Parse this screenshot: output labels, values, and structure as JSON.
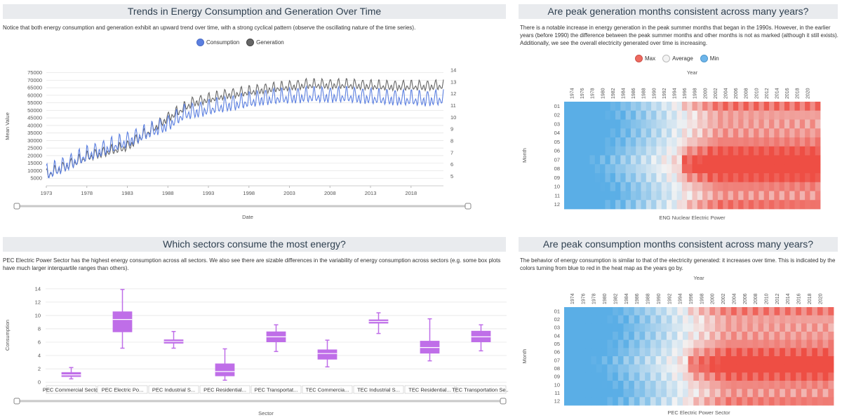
{
  "panels": {
    "trends": {
      "title": "Trends in Energy Consumption and Generation Over Time",
      "description": "Notice that both energy consumption and generation exhibit an upward trend over time, with a strong cyclical pattern (observe the oscillating nature of the time series).",
      "legend": [
        "Consumption",
        "Generation"
      ],
      "xlabel": "Date",
      "ylabel": "Mean Value"
    },
    "gen_heatmap": {
      "title": "Are peak generation months consistent across many years?",
      "description": "There is a notable increase in energy generation in the peak summer months that began in the 1990s. However, in the earlier years (before 1990) the difference between the peak summer months and other months is not as marked (although it still exists). Additionally, we see the overall electricity generated over time is increasing.",
      "legend": [
        "Max",
        "Average",
        "Min"
      ],
      "xlabel": "Year",
      "ylabel": "Month",
      "caption": "ENG Nuclear Electric Power"
    },
    "sectors": {
      "title": "Which sectors consume the most energy?",
      "description": "PEC Electric Power Sector has the highest energy consumption across all sectors. We also see there are sizable differences in the variability of energy consumption across sectors (e.g. some box plots have much larger interquartile ranges than others).",
      "xlabel": "Sector",
      "ylabel": "Consumption"
    },
    "cons_heatmap": {
      "title": "Are peak consumption months consistent across many years?",
      "description": "The behavior of energy consumption is similar to that of the electricity generated: it increases over time. This is indicated by the colors turning from blue to red in the heat map as the years go by.",
      "xlabel": "Year",
      "ylabel": "Month",
      "caption": "PEC Electric Power Sector"
    }
  },
  "colors": {
    "consumption": "#5b7fe0",
    "generation": "#666666",
    "box": "#bf6ee8",
    "heat_min": "#5aaee6",
    "heat_avg": "#f3f3f3",
    "heat_max": "#ee4e44",
    "title_bg": "#e9ebee"
  },
  "chart_data": [
    {
      "type": "line",
      "x_ticks": [
        "1973",
        "1978",
        "1983",
        "1988",
        "1993",
        "1998",
        "2003",
        "2008",
        "2013",
        "2018"
      ],
      "y_left_ticks": [
        5000,
        10000,
        15000,
        20000,
        25000,
        30000,
        35000,
        40000,
        45000,
        50000,
        55000,
        60000,
        65000,
        70000,
        75000
      ],
      "y_right_ticks": [
        5,
        6,
        7,
        8,
        9,
        10,
        11,
        12,
        13,
        14
      ],
      "x_range": [
        1973,
        2022
      ],
      "series": [
        {
          "name": "Consumption",
          "axis": "right",
          "trend": [
            [
              1973,
              5.2
            ],
            [
              1978,
              6.8
            ],
            [
              1983,
              8.0
            ],
            [
              1988,
              9.4
            ],
            [
              1990,
              10.3
            ],
            [
              1995,
              11.0
            ],
            [
              2000,
              11.6
            ],
            [
              2005,
              11.8
            ],
            [
              2010,
              11.8
            ],
            [
              2015,
              11.6
            ],
            [
              2020,
              11.5
            ],
            [
              2022,
              11.6
            ]
          ],
          "amplitude": 0.8
        },
        {
          "name": "Generation",
          "axis": "left",
          "trend": [
            [
              1973,
              7000
            ],
            [
              1978,
              19000
            ],
            [
              1983,
              26000
            ],
            [
              1988,
              45000
            ],
            [
              1991,
              55000
            ],
            [
              1995,
              60000
            ],
            [
              2000,
              64000
            ],
            [
              2005,
              67000
            ],
            [
              2010,
              67000
            ],
            [
              2015,
              66000
            ],
            [
              2020,
              66000
            ],
            [
              2022,
              66500
            ]
          ],
          "amplitude": 4000
        }
      ]
    },
    {
      "type": "heatmap",
      "years_from": 1973,
      "years_to": 2022,
      "year_labels": [
        "1974",
        "1976",
        "1978",
        "1980",
        "1982",
        "1984",
        "1986",
        "1988",
        "1990",
        "1992",
        "1994",
        "1996",
        "1998",
        "2000",
        "2002",
        "2004",
        "2006",
        "2008",
        "2010",
        "2012",
        "2014",
        "2016",
        "2018",
        "2020"
      ],
      "months": [
        "01",
        "02",
        "03",
        "04",
        "05",
        "06",
        "07",
        "08",
        "09",
        "10",
        "11",
        "12"
      ]
    },
    {
      "type": "box",
      "ylim": [
        0,
        14
      ],
      "y_ticks": [
        0,
        2,
        4,
        6,
        8,
        10,
        12,
        14
      ],
      "categories": [
        "PEC Commercial Sector",
        "PEC  Electric Po...",
        "PEC Industrial S...",
        "PEC  Residential...",
        "PEC Transportat...",
        "TEC  Commercia...",
        "TEC Industrial S...",
        "TEC  Residential...",
        "TEC Transportation Se..."
      ],
      "boxes": [
        {
          "min": 0.5,
          "q1": 0.8,
          "median": 1.1,
          "q3": 1.5,
          "max": 2.2
        },
        {
          "min": 5.1,
          "q1": 7.5,
          "median": 9.4,
          "q3": 10.6,
          "max": 13.9
        },
        {
          "min": 5.1,
          "q1": 5.8,
          "median": 6.1,
          "q3": 6.4,
          "max": 7.6
        },
        {
          "min": 0.3,
          "q1": 0.9,
          "median": 1.6,
          "q3": 2.8,
          "max": 5.0
        },
        {
          "min": 4.6,
          "q1": 6.0,
          "median": 6.8,
          "q3": 7.6,
          "max": 8.6
        },
        {
          "min": 2.3,
          "q1": 3.4,
          "median": 4.3,
          "q3": 4.9,
          "max": 6.3
        },
        {
          "min": 7.3,
          "q1": 8.8,
          "median": 9.1,
          "q3": 9.4,
          "max": 10.4
        },
        {
          "min": 3.2,
          "q1": 4.3,
          "median": 5.2,
          "q3": 6.2,
          "max": 9.5
        },
        {
          "min": 4.7,
          "q1": 6.0,
          "median": 6.8,
          "q3": 7.7,
          "max": 8.6
        }
      ]
    },
    {
      "type": "heatmap",
      "years_from": 1973,
      "years_to": 2022,
      "year_labels": [
        "1974",
        "1976",
        "1978",
        "1980",
        "1982",
        "1984",
        "1986",
        "1988",
        "1990",
        "1992",
        "1994",
        "1996",
        "1998",
        "2000",
        "2002",
        "2004",
        "2006",
        "2008",
        "2010",
        "2012",
        "2014",
        "2016",
        "2018",
        "2020"
      ],
      "months": [
        "01",
        "02",
        "03",
        "04",
        "05",
        "06",
        "07",
        "08",
        "09",
        "10",
        "11",
        "12"
      ]
    }
  ]
}
